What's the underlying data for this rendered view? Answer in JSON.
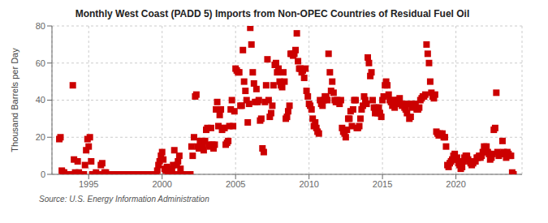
{
  "chart_data": {
    "type": "scatter",
    "title": "Monthly West Coast (PADD 5) Imports from Non-OPEC Countries of Residual Fuel Oil",
    "y_label": "Thousand Barrels per Day",
    "source": "Source: U.S. Energy Information Administration",
    "color": "#cc0000",
    "marker": "square",
    "grid": true,
    "xlim": [
      1992.5,
      2024.5
    ],
    "xticks": [
      1995,
      2000,
      2005,
      2010,
      2015,
      2020
    ],
    "ylim": [
      0,
      80
    ],
    "yticks": [
      0,
      20,
      40,
      60,
      80
    ],
    "x": [
      1993,
      1993.08,
      1993.17,
      1993.25,
      1993.33,
      1993.42,
      1993.5,
      1993.58,
      1993.67,
      1993.75,
      1993.83,
      1993.92,
      1994,
      1994.08,
      1994.17,
      1994.25,
      1994.33,
      1994.42,
      1994.5,
      1994.58,
      1994.67,
      1994.75,
      1994.83,
      1994.92,
      1995,
      1995.08,
      1995.17,
      1995.25,
      1995.33,
      1995.42,
      1995.5,
      1995.58,
      1995.67,
      1995.75,
      1995.83,
      1995.92,
      1996,
      1996.08,
      1996.17,
      1996.25,
      1996.33,
      1996.42,
      1996.5,
      1996.58,
      1996.67,
      1996.75,
      1996.83,
      1996.92,
      1997,
      1997.08,
      1997.17,
      1997.25,
      1997.33,
      1997.42,
      1997.5,
      1997.58,
      1997.67,
      1997.75,
      1997.83,
      1997.92,
      1998,
      1998.08,
      1998.17,
      1998.25,
      1998.33,
      1998.42,
      1998.5,
      1998.58,
      1998.67,
      1998.75,
      1998.83,
      1998.92,
      1999,
      1999.08,
      1999.17,
      1999.25,
      1999.33,
      1999.42,
      1999.5,
      1999.58,
      1999.67,
      1999.75,
      1999.83,
      1999.92,
      2000,
      2000.08,
      2000.17,
      2000.25,
      2000.33,
      2000.42,
      2000.5,
      2000.58,
      2000.67,
      2000.75,
      2000.83,
      2000.92,
      2001,
      2001.08,
      2001.17,
      2001.25,
      2001.33,
      2001.42,
      2001.5,
      2001.58,
      2001.67,
      2001.75,
      2001.83,
      2001.92,
      2002,
      2002.08,
      2002.17,
      2002.25,
      2002.33,
      2002.42,
      2002.5,
      2002.58,
      2002.67,
      2002.75,
      2002.83,
      2002.92,
      2003,
      2003.08,
      2003.17,
      2003.25,
      2003.33,
      2003.42,
      2003.5,
      2003.58,
      2003.67,
      2003.75,
      2003.83,
      2003.92,
      2004,
      2004.08,
      2004.17,
      2004.25,
      2004.33,
      2004.42,
      2004.5,
      2004.58,
      2004.67,
      2004.75,
      2004.83,
      2004.92,
      2005,
      2005.08,
      2005.17,
      2005.25,
      2005.33,
      2005.42,
      2005.5,
      2005.58,
      2005.67,
      2005.75,
      2005.83,
      2005.92,
      2006,
      2006.08,
      2006.17,
      2006.25,
      2006.33,
      2006.42,
      2006.5,
      2006.58,
      2006.67,
      2006.75,
      2006.83,
      2006.92,
      2007,
      2007.08,
      2007.17,
      2007.25,
      2007.33,
      2007.42,
      2007.5,
      2007.58,
      2007.67,
      2007.75,
      2007.83,
      2007.92,
      2008,
      2008.08,
      2008.17,
      2008.25,
      2008.33,
      2008.42,
      2008.5,
      2008.58,
      2008.67,
      2008.75,
      2008.83,
      2008.92,
      2009,
      2009.08,
      2009.17,
      2009.25,
      2009.33,
      2009.42,
      2009.5,
      2009.58,
      2009.67,
      2009.75,
      2009.83,
      2009.92,
      2010,
      2010.08,
      2010.17,
      2010.25,
      2010.33,
      2010.42,
      2010.5,
      2010.58,
      2010.67,
      2010.75,
      2010.83,
      2010.92,
      2011,
      2011.08,
      2011.17,
      2011.25,
      2011.33,
      2011.42,
      2011.5,
      2011.58,
      2011.67,
      2011.75,
      2011.83,
      2011.92,
      2012,
      2012.08,
      2012.17,
      2012.25,
      2012.33,
      2012.42,
      2012.5,
      2012.58,
      2012.67,
      2012.75,
      2012.83,
      2012.92,
      2013,
      2013.08,
      2013.17,
      2013.25,
      2013.33,
      2013.42,
      2013.5,
      2013.58,
      2013.67,
      2013.75,
      2013.83,
      2013.92,
      2014,
      2014.08,
      2014.17,
      2014.25,
      2014.33,
      2014.42,
      2014.5,
      2014.58,
      2014.67,
      2014.75,
      2014.83,
      2014.92,
      2015,
      2015.08,
      2015.17,
      2015.25,
      2015.33,
      2015.42,
      2015.5,
      2015.58,
      2015.67,
      2015.75,
      2015.83,
      2015.92,
      2016,
      2016.08,
      2016.17,
      2016.25,
      2016.33,
      2016.42,
      2016.5,
      2016.58,
      2016.67,
      2016.75,
      2016.83,
      2016.92,
      2017,
      2017.08,
      2017.17,
      2017.25,
      2017.33,
      2017.42,
      2017.5,
      2017.58,
      2017.67,
      2017.75,
      2017.83,
      2017.92,
      2018,
      2018.08,
      2018.17,
      2018.25,
      2018.33,
      2018.42,
      2018.5,
      2018.58,
      2018.67,
      2018.75,
      2018.83,
      2018.92,
      2019,
      2019.08,
      2019.17,
      2019.25,
      2019.33,
      2019.42,
      2019.5,
      2019.58,
      2019.67,
      2019.75,
      2019.83,
      2019.92,
      2020,
      2020.08,
      2020.17,
      2020.25,
      2020.33,
      2020.42,
      2020.5,
      2020.58,
      2020.67,
      2020.75,
      2020.83,
      2020.92,
      2021,
      2021.08,
      2021.17,
      2021.25,
      2021.33,
      2021.42,
      2021.5,
      2021.58,
      2021.67,
      2021.75,
      2021.83,
      2021.92,
      2022,
      2022.08,
      2022.17,
      2022.25,
      2022.33,
      2022.42,
      2022.5,
      2022.58,
      2022.67,
      2022.75,
      2022.83,
      2022.92,
      2023,
      2023.08,
      2023.17,
      2023.25,
      2023.33,
      2023.42,
      2023.5,
      2023.58,
      2023.67,
      2023.75,
      2023.83,
      2023.92
    ],
    "values": [
      19,
      20,
      2,
      1,
      1,
      0,
      0,
      0,
      0,
      0,
      0,
      48,
      8,
      1,
      0,
      7,
      1,
      0,
      0,
      0,
      0,
      5,
      13,
      19,
      15,
      20,
      7,
      0,
      0,
      0,
      1,
      0,
      0,
      0,
      5,
      6,
      0,
      1,
      1,
      0,
      0,
      0,
      0,
      0,
      0,
      0,
      0,
      0,
      0,
      0,
      0,
      0,
      0,
      0,
      0,
      0,
      0,
      0,
      0,
      0,
      0,
      0,
      0,
      0,
      0,
      0,
      0,
      0,
      0,
      0,
      0,
      0,
      0,
      0,
      0,
      0,
      0,
      0,
      0,
      0,
      2,
      5,
      7,
      10,
      12,
      8,
      3,
      2,
      4,
      1,
      0,
      0,
      3,
      5,
      13,
      0,
      5,
      7,
      10,
      3,
      0,
      0,
      0,
      0,
      0,
      0,
      0,
      0,
      15,
      10,
      20,
      42,
      43,
      15,
      14,
      18,
      17,
      15,
      13,
      18,
      24,
      25,
      16,
      15,
      25,
      16,
      14,
      16,
      35,
      39,
      26,
      32,
      35,
      24,
      25,
      25,
      16,
      17,
      18,
      26,
      35,
      40,
      26,
      34,
      57,
      56,
      55,
      55,
      37,
      37,
      67,
      50,
      45,
      40,
      28,
      38,
      79,
      70,
      55,
      49,
      39,
      46,
      39,
      40,
      29,
      30,
      14,
      12,
      39,
      48,
      62,
      40,
      31,
      33,
      37,
      48,
      59,
      60,
      55,
      57,
      50,
      48,
      47,
      55,
      50,
      30,
      31,
      34,
      37,
      65,
      65,
      64,
      65,
      67,
      76,
      61,
      57,
      57,
      55,
      56,
      52,
      57,
      45,
      42,
      38,
      37,
      35,
      30,
      26,
      28,
      25,
      23,
      22,
      40,
      38,
      37,
      40,
      42,
      42,
      40,
      65,
      55,
      45,
      50,
      44,
      40,
      39,
      40,
      39,
      38,
      40,
      25,
      23,
      22,
      20,
      24,
      30,
      30,
      34,
      26,
      35,
      40,
      40,
      25,
      25,
      26,
      30,
      35,
      37,
      42,
      40,
      38,
      63,
      60,
      53,
      55,
      40,
      36,
      33,
      36,
      33,
      36,
      33,
      31,
      40,
      42,
      48,
      50,
      48,
      43,
      40,
      39,
      37,
      40,
      36,
      40,
      38,
      40,
      41,
      38,
      37,
      38,
      36,
      35,
      33,
      38,
      30,
      31,
      36,
      38,
      38,
      37,
      35,
      35,
      36,
      40,
      41,
      42,
      42,
      43,
      70,
      65,
      60,
      50,
      44,
      42,
      41,
      43,
      23,
      22,
      21,
      22,
      21,
      22,
      20,
      20,
      15,
      5,
      4,
      6,
      7,
      8,
      10,
      11,
      8,
      9,
      6,
      5,
      3,
      4,
      7,
      9,
      10,
      10,
      8,
      7,
      6,
      5,
      6,
      7,
      7,
      9,
      9,
      10,
      9,
      10,
      12,
      15,
      14,
      15,
      12,
      11,
      8,
      9,
      11,
      24,
      25,
      44,
      12,
      10,
      11,
      11,
      18,
      12,
      11,
      9,
      12,
      11,
      10,
      10,
      1,
      0
    ]
  }
}
